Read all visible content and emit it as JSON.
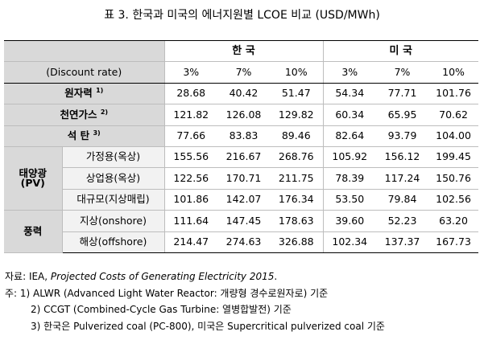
{
  "title": "표 3. 한국과 미국의 에너지원별 LCOE 비교 (USD/MWh)",
  "header": {
    "korea": "한 국",
    "usa": "미 국",
    "discount_label": "(Discount rate)",
    "rates": [
      "3%",
      "7%",
      "10%",
      "3%",
      "7%",
      "10%"
    ]
  },
  "rows": {
    "nuclear": {
      "label": "원자력",
      "note": "1)",
      "values": [
        "28.68",
        "40.42",
        "51.47",
        "54.34",
        "77.71",
        "101.76"
      ]
    },
    "gas": {
      "label": "천연가스",
      "note": "2)",
      "values": [
        "121.82",
        "126.08",
        "129.82",
        "60.34",
        "65.95",
        "70.62"
      ]
    },
    "coal": {
      "label": "석 탄",
      "note": "3)",
      "values": [
        "77.66",
        "83.83",
        "89.46",
        "82.64",
        "93.79",
        "104.00"
      ]
    }
  },
  "solar": {
    "group_line1": "태양광",
    "group_line2": "(PV)",
    "rows": [
      {
        "label": "가정용(옥상)",
        "values": [
          "155.56",
          "216.67",
          "268.76",
          "105.92",
          "156.12",
          "199.45"
        ]
      },
      {
        "label": "상업용(옥상)",
        "values": [
          "122.56",
          "170.71",
          "211.75",
          "78.39",
          "117.24",
          "150.76"
        ]
      },
      {
        "label": "대규모(지상매립)",
        "values": [
          "101.86",
          "142.07",
          "176.34",
          "53.50",
          "79.84",
          "102.56"
        ]
      }
    ]
  },
  "wind": {
    "group": "풍력",
    "rows": [
      {
        "label": "지상(onshore)",
        "values": [
          "111.64",
          "147.45",
          "178.63",
          "39.60",
          "52.23",
          "63.20"
        ]
      },
      {
        "label": "해상(offshore)",
        "values": [
          "214.47",
          "274.63",
          "326.88",
          "102.34",
          "137.37",
          "167.73"
        ]
      }
    ]
  },
  "notes": {
    "source_prefix": "자료: IEA, ",
    "source_italic": "Projected Costs of Generating Electricity 2015",
    "source_suffix": ".",
    "note_prefix": "주:  ",
    "note1": "1) ALWR (Advanced Light Water Reactor: 개량형 경수로원자로) 기준",
    "note2": "2) CCGT (Combined-Cycle Gas Turbine: 열병합발전) 기준",
    "note3": "3) 한국은 Pulverized coal (PC-800), 미국은 Supercritical pulverized coal 기준"
  }
}
